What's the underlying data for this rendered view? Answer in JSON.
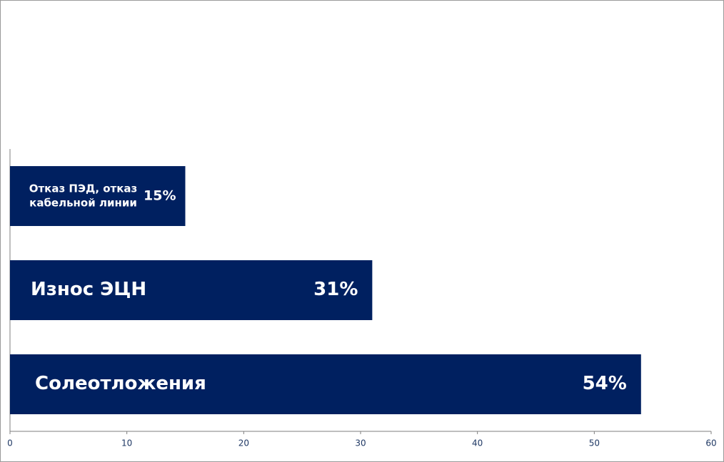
{
  "chart_data": {
    "type": "bar",
    "orientation": "horizontal",
    "categories": [
      "Отказ ПЭД, отказ кабельной линии",
      "Износ ЭЦН",
      "Солеотложения"
    ],
    "values": [
      15,
      31,
      54
    ],
    "value_labels": [
      "15%",
      "31%",
      "54%"
    ],
    "color": "#002060",
    "xlim": [
      0,
      60
    ],
    "xticks": [
      0,
      10,
      20,
      30,
      40,
      50,
      60
    ],
    "grid": false
  }
}
